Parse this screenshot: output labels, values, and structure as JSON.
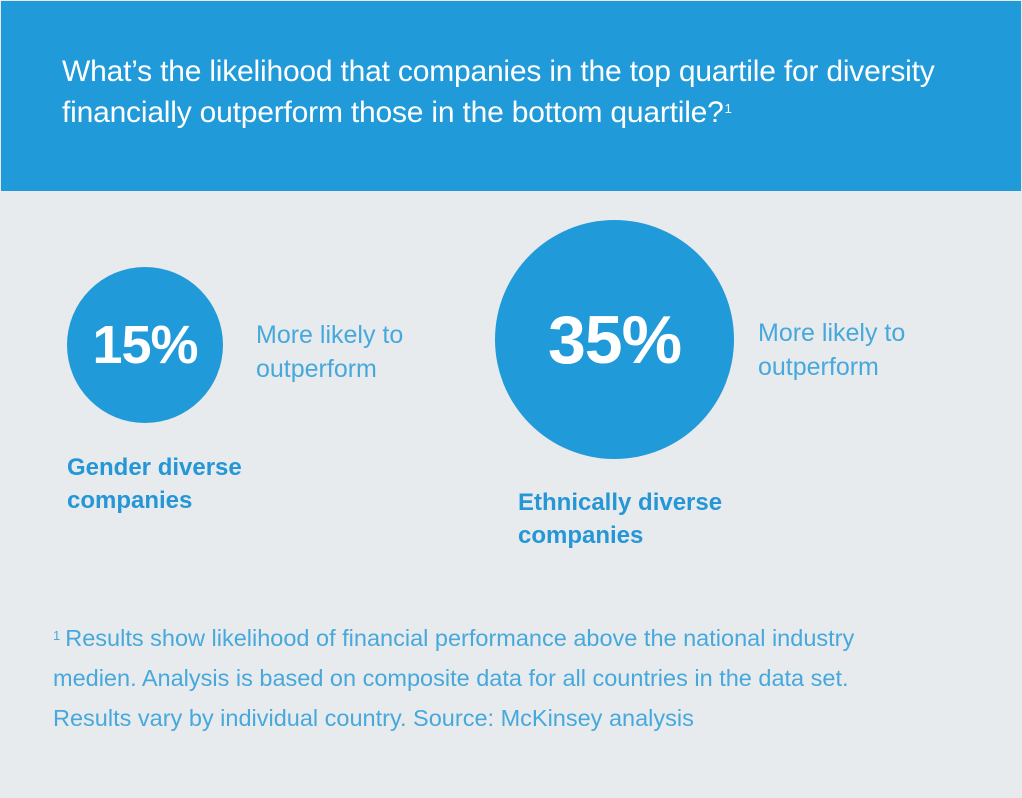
{
  "title": {
    "text": "What’s the likelihood that companies in the top quartile for diversity financially outperform those in the bottom quartile?",
    "footnote_marker": "1"
  },
  "chart_data": {
    "type": "bubble",
    "title": "What’s the likelihood that companies in the top quartile for diversity financially outperform those in the bottom quartile?",
    "unit": "%",
    "categories": [
      "Gender diverse companies",
      "Ethnically diverse companies"
    ],
    "values": [
      15,
      35
    ],
    "items": [
      {
        "value_label": "15%",
        "value": 15,
        "description": "More likely to\noutperform",
        "category": "Gender diverse\ncompanies"
      },
      {
        "value_label": "35%",
        "value": 35,
        "description": "More likely to\noutperform",
        "category": "Ethnically diverse\ncompanies"
      }
    ],
    "colors": {
      "header_bg": "#209ad9",
      "circle": "#209ad9",
      "panel_bg": "#e7ebed",
      "accent_text": "#47a8dc"
    }
  },
  "footnote": {
    "marker": "1",
    "text": "Results show likelihood of financial performance above the national industry\nmedien. Analysis is based on composite data for all countries in the data set.\nResults vary by individual country. Source: McKinsey analysis"
  }
}
